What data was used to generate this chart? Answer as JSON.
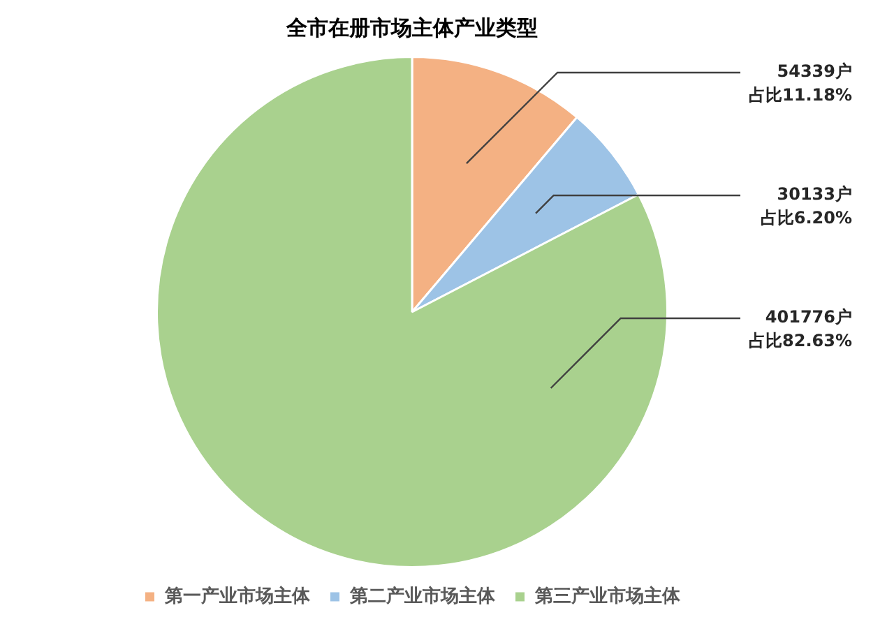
{
  "chart_data": {
    "type": "pie",
    "title": "全市在册市场主体产业类型",
    "categories": [
      "第一产业市场主体",
      "第二产业市场主体",
      "第三产业市场主体"
    ],
    "values": [
      54339,
      30133,
      401776
    ],
    "colors": [
      "#f4b183",
      "#9dc3e6",
      "#a9d18e"
    ],
    "value_labels": [
      "54339户占比11.18%",
      "30133户占比6.20%",
      "401776户占比82.63%"
    ],
    "legend": "bottom"
  }
}
